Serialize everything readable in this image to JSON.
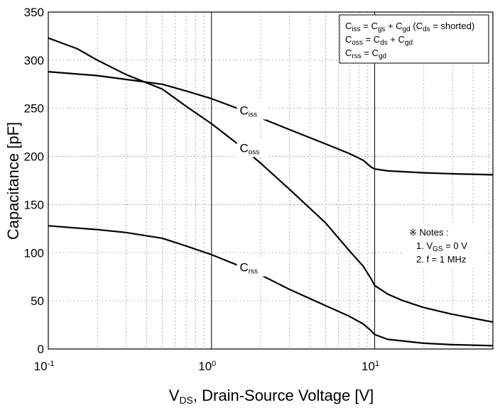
{
  "chart_data": {
    "type": "line",
    "title": "",
    "xlabel": {
      "main": "V",
      "sub": "DS",
      "rest": ", Drain-Source Voltage [V]"
    },
    "ylabel": "Capacitance [pF]",
    "x_scale": "log",
    "xlim": [
      0.1,
      53
    ],
    "ylim": [
      0,
      350
    ],
    "x_ticks": [
      {
        "base": "10",
        "exp": "-1",
        "value": 0.1
      },
      {
        "base": "10",
        "exp": "0",
        "value": 1
      },
      {
        "base": "10",
        "exp": "1",
        "value": 10
      }
    ],
    "y_ticks": [
      {
        "label": "0",
        "value": 0
      },
      {
        "label": "50",
        "value": 50
      },
      {
        "label": "100",
        "value": 100
      },
      {
        "label": "150",
        "value": 150
      },
      {
        "label": "200",
        "value": 200
      },
      {
        "label": "250",
        "value": 250
      },
      {
        "label": "300",
        "value": 300
      },
      {
        "label": "350",
        "value": 350
      }
    ],
    "grid": "dotted (log minor on x)",
    "series": [
      {
        "name": "Ciss",
        "label_main": "C",
        "label_sub": "iss",
        "points": [
          [
            0.1,
            288
          ],
          [
            0.2,
            284
          ],
          [
            0.3,
            280
          ],
          [
            0.5,
            275
          ],
          [
            0.7,
            268
          ],
          [
            1.0,
            260
          ],
          [
            1.5,
            249
          ],
          [
            2,
            240
          ],
          [
            3,
            228
          ],
          [
            5,
            213
          ],
          [
            7,
            203
          ],
          [
            8.5,
            196
          ],
          [
            9.5,
            189
          ],
          [
            10,
            187
          ],
          [
            12,
            185
          ],
          [
            20,
            183
          ],
          [
            30,
            182
          ],
          [
            53,
            181
          ]
        ]
      },
      {
        "name": "Coss",
        "label_main": "C",
        "label_sub": "oss",
        "points": [
          [
            0.1,
            323
          ],
          [
            0.15,
            312
          ],
          [
            0.2,
            300
          ],
          [
            0.3,
            285
          ],
          [
            0.5,
            270
          ],
          [
            0.7,
            252
          ],
          [
            1.0,
            234
          ],
          [
            1.5,
            211
          ],
          [
            2,
            193
          ],
          [
            3,
            166
          ],
          [
            5,
            131
          ],
          [
            7,
            102
          ],
          [
            8.5,
            86
          ],
          [
            9.5,
            73
          ],
          [
            10,
            66
          ],
          [
            12,
            57
          ],
          [
            15,
            50
          ],
          [
            20,
            43
          ],
          [
            30,
            36
          ],
          [
            53,
            28
          ]
        ]
      },
      {
        "name": "Crss",
        "label_main": "C",
        "label_sub": "rss",
        "points": [
          [
            0.1,
            128
          ],
          [
            0.2,
            124
          ],
          [
            0.3,
            121
          ],
          [
            0.5,
            115
          ],
          [
            0.7,
            107
          ],
          [
            1.0,
            98
          ],
          [
            1.5,
            86
          ],
          [
            2,
            77
          ],
          [
            3,
            62
          ],
          [
            5,
            45
          ],
          [
            7,
            34
          ],
          [
            8.5,
            26
          ],
          [
            9.5,
            19
          ],
          [
            10,
            15
          ],
          [
            12,
            10
          ],
          [
            20,
            6
          ],
          [
            30,
            4.5
          ],
          [
            53,
            3.5
          ]
        ]
      }
    ],
    "legend": {
      "box_position": "top-right",
      "lines": [
        [
          {
            "t": "C"
          },
          {
            "s": "iss"
          },
          {
            "t": " = C"
          },
          {
            "s": "gs"
          },
          {
            "t": " + C"
          },
          {
            "s": "gd"
          },
          {
            "t": " (C"
          },
          {
            "s": "ds"
          },
          {
            "t": " = shorted)"
          }
        ],
        [
          {
            "t": "C"
          },
          {
            "s": "oss"
          },
          {
            "t": " = C"
          },
          {
            "s": "ds"
          },
          {
            "t": " + C"
          },
          {
            "s": "gd"
          }
        ],
        [
          {
            "t": "C"
          },
          {
            "s": "rss"
          },
          {
            "t": " = C"
          },
          {
            "s": "gd"
          }
        ]
      ]
    },
    "notes": [
      [
        {
          "t": "※ Notes :"
        }
      ],
      [
        {
          "t": "1. V"
        },
        {
          "s": "GS"
        },
        {
          "t": " = 0 V"
        }
      ],
      [
        {
          "t": "2. f = 1 MHz"
        }
      ]
    ],
    "colors": {
      "line": "#000000",
      "grid": "#9a9a9a",
      "background": "#ffffff"
    }
  }
}
